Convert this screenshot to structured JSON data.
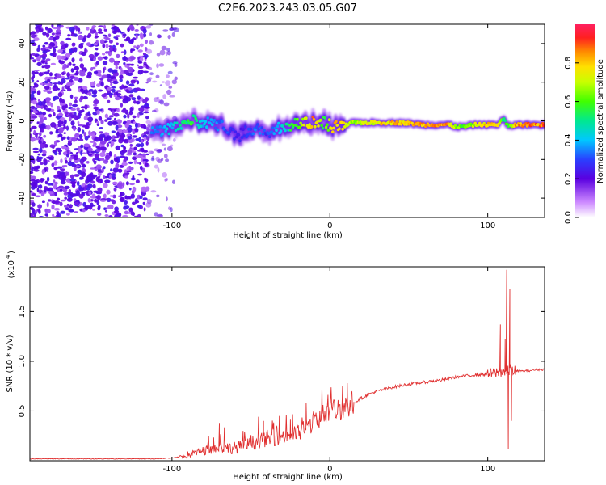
{
  "title": "C2E6.2023.243.03.05.G07",
  "chart_data": [
    {
      "type": "heatmap",
      "xlabel": "Height of straight line (km)",
      "ylabel": "Frequency (Hz)",
      "xlim": [
        -190,
        136
      ],
      "ylim": [
        -50,
        50
      ],
      "x_ticks": [
        -100,
        0,
        100
      ],
      "y_ticks": [
        -40,
        -20,
        0,
        20,
        40
      ],
      "colorbar": {
        "label": "Normalized spectral amplitude",
        "range": [
          0,
          1
        ],
        "ticks": [
          0.0,
          0.2,
          0.4,
          0.6,
          0.8
        ]
      },
      "noise_region_x": [
        -190,
        -97
      ],
      "ridge": {
        "x": [
          -113,
          -105,
          -98,
          -92,
          -88,
          -82,
          -76,
          -70,
          -64,
          -58,
          -52,
          -46,
          -40,
          -34,
          -28,
          -22,
          -16,
          -10,
          -4,
          2,
          8,
          14,
          20,
          30,
          45,
          60,
          75,
          80,
          85,
          92,
          100,
          106,
          110,
          113,
          118,
          125,
          136
        ],
        "f": [
          -5,
          -5,
          -4,
          -2,
          0,
          -1,
          -1,
          -2,
          -4,
          -8,
          -5,
          -4,
          -9,
          -4,
          -3,
          -2,
          -1,
          0,
          -1,
          -3,
          -3,
          -1,
          -1,
          -1,
          -1,
          -2,
          -2,
          -3,
          -3,
          -2,
          -2,
          -2,
          1,
          -3,
          -2,
          -2,
          -2
        ],
        "amp": [
          0.35,
          0.4,
          0.45,
          0.55,
          0.6,
          0.45,
          0.4,
          0.35,
          0.3,
          0.25,
          0.3,
          0.35,
          0.3,
          0.4,
          0.5,
          0.6,
          0.75,
          0.9,
          0.6,
          0.85,
          0.8,
          0.7,
          0.75,
          0.8,
          0.85,
          0.85,
          0.88,
          0.7,
          0.6,
          0.75,
          0.85,
          0.8,
          0.55,
          0.6,
          0.85,
          0.9,
          0.9
        ]
      }
    },
    {
      "type": "line",
      "xlabel": "Height of straight line (km)",
      "ylabel": "SNR (10 * v/v)",
      "y_scale_label": "(x10",
      "y_scale_exp": "4",
      "xlim": [
        -190,
        136
      ],
      "ylim": [
        0,
        1.95
      ],
      "x_ticks": [
        -100,
        0,
        100
      ],
      "y_ticks": [
        0.5,
        1.0,
        1.5
      ],
      "y_tick_labels": [
        "0.5",
        "1.0",
        "1.5"
      ],
      "series_color": "#e03030",
      "series": [
        {
          "x": [
            -190,
            -150,
            -110,
            -98,
            -90,
            -80,
            -70,
            -60,
            -50,
            -40,
            -30,
            -20,
            -15,
            -10,
            -5,
            0,
            5,
            10,
            15,
            20,
            25,
            30,
            40,
            50,
            60,
            70,
            80,
            90,
            100,
            105,
            108,
            110,
            112,
            113,
            115,
            118,
            122,
            128,
            136
          ],
          "y": [
            0.02,
            0.02,
            0.02,
            0.03,
            0.06,
            0.1,
            0.13,
            0.13,
            0.17,
            0.22,
            0.25,
            0.28,
            0.33,
            0.4,
            0.46,
            0.5,
            0.52,
            0.55,
            0.58,
            0.63,
            0.67,
            0.7,
            0.74,
            0.77,
            0.79,
            0.81,
            0.84,
            0.86,
            0.87,
            0.88,
            0.9,
            0.9,
            0.88,
            0.9,
            0.92,
            0.9,
            0.9,
            0.91,
            0.92
          ]
        }
      ],
      "spikes": [
        {
          "x": -70,
          "y": 0.38
        },
        {
          "x": -55,
          "y": 0.3
        },
        {
          "x": -42,
          "y": 0.4
        },
        {
          "x": -32,
          "y": 0.45
        },
        {
          "x": -25,
          "y": 0.42
        },
        {
          "x": -15,
          "y": 0.58
        },
        {
          "x": -5,
          "y": 0.75
        },
        {
          "x": 8,
          "y": 0.75
        },
        {
          "x": 11,
          "y": 0.78
        },
        {
          "x": 108,
          "y": 1.37
        },
        {
          "x": 111,
          "y": 1.22
        },
        {
          "x": 112,
          "y": 1.92
        },
        {
          "x": 114,
          "y": 1.73
        },
        {
          "x": 113,
          "y": 0.12
        },
        {
          "x": 115,
          "y": 0.4
        }
      ]
    }
  ]
}
